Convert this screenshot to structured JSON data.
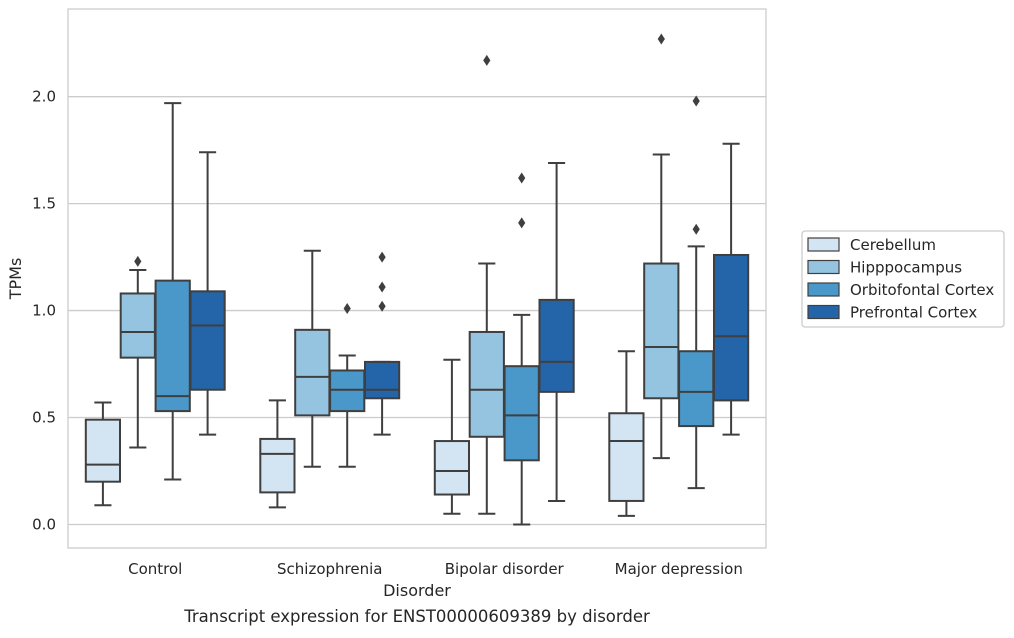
{
  "caption": "Transcript expression for ENST00000609389 by disorder",
  "chart_data": {
    "type": "box",
    "title": "",
    "xlabel": "Disorder",
    "ylabel": "TPMs",
    "ylim": [
      -0.11,
      2.41
    ],
    "yticks": [
      0.0,
      0.5,
      1.0,
      1.5,
      2.0
    ],
    "ytick_labels": [
      "0.0",
      "0.5",
      "1.0",
      "1.5",
      "2.0"
    ],
    "grid": "horizontal",
    "legend_position": "right",
    "categories": [
      "Control",
      "Schizophrenia",
      "Bipolar disorder",
      "Major depression"
    ],
    "series": [
      {
        "name": "Cerebellum",
        "color": "#d3e4f3",
        "boxes": [
          {
            "whislo": 0.09,
            "q1": 0.2,
            "med": 0.28,
            "q3": 0.49,
            "whishi": 0.57,
            "fliers": []
          },
          {
            "whislo": 0.08,
            "q1": 0.15,
            "med": 0.33,
            "q3": 0.4,
            "whishi": 0.58,
            "fliers": []
          },
          {
            "whislo": 0.05,
            "q1": 0.14,
            "med": 0.25,
            "q3": 0.39,
            "whishi": 0.77,
            "fliers": []
          },
          {
            "whislo": 0.04,
            "q1": 0.11,
            "med": 0.39,
            "q3": 0.52,
            "whishi": 0.81,
            "fliers": []
          }
        ]
      },
      {
        "name": "Hipppocampus",
        "color": "#94c4df",
        "boxes": [
          {
            "whislo": 0.36,
            "q1": 0.78,
            "med": 0.9,
            "q3": 1.08,
            "whishi": 1.19,
            "fliers": [
              1.23
            ]
          },
          {
            "whislo": 0.27,
            "q1": 0.51,
            "med": 0.69,
            "q3": 0.91,
            "whishi": 1.28,
            "fliers": []
          },
          {
            "whislo": 0.05,
            "q1": 0.41,
            "med": 0.63,
            "q3": 0.9,
            "whishi": 1.22,
            "fliers": [
              2.17
            ]
          },
          {
            "whislo": 0.31,
            "q1": 0.59,
            "med": 0.83,
            "q3": 1.22,
            "whishi": 1.73,
            "fliers": [
              2.27
            ]
          }
        ]
      },
      {
        "name": "Orbitofontal Cortex",
        "color": "#4a98c9",
        "boxes": [
          {
            "whislo": 0.21,
            "q1": 0.53,
            "med": 0.6,
            "q3": 1.14,
            "whishi": 1.97,
            "fliers": []
          },
          {
            "whislo": 0.27,
            "q1": 0.53,
            "med": 0.63,
            "q3": 0.72,
            "whishi": 0.79,
            "fliers": [
              1.01
            ]
          },
          {
            "whislo": 0.0,
            "q1": 0.3,
            "med": 0.51,
            "q3": 0.74,
            "whishi": 0.98,
            "fliers": [
              1.41,
              1.62
            ]
          },
          {
            "whislo": 0.17,
            "q1": 0.46,
            "med": 0.62,
            "q3": 0.81,
            "whishi": 1.3,
            "fliers": [
              1.38,
              1.98
            ]
          }
        ]
      },
      {
        "name": "Prefrontal Cortex",
        "color": "#2464a8",
        "boxes": [
          {
            "whislo": 0.42,
            "q1": 0.63,
            "med": 0.93,
            "q3": 1.09,
            "whishi": 1.74,
            "fliers": []
          },
          {
            "whislo": 0.42,
            "q1": 0.59,
            "med": 0.63,
            "q3": 0.76,
            "whishi": 0.76,
            "fliers": [
              1.02,
              1.11,
              1.25
            ]
          },
          {
            "whislo": 0.11,
            "q1": 0.62,
            "med": 0.76,
            "q3": 1.05,
            "whishi": 1.69,
            "fliers": []
          },
          {
            "whislo": 0.42,
            "q1": 0.58,
            "med": 0.88,
            "q3": 1.26,
            "whishi": 1.78,
            "fliers": []
          }
        ]
      }
    ]
  }
}
